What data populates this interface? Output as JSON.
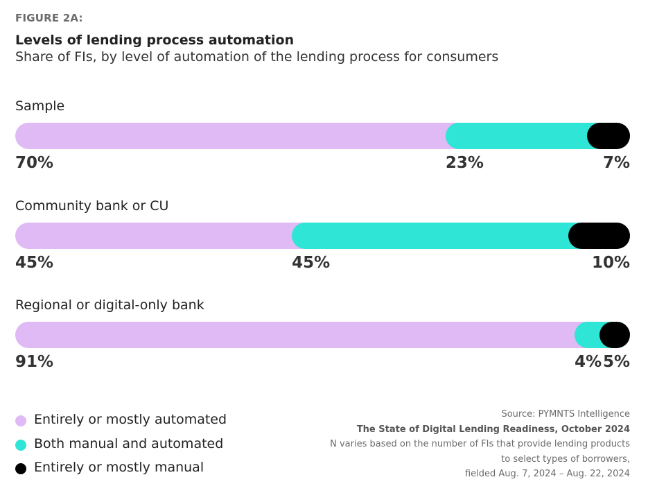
{
  "figure_label": "FIGURE 2A:",
  "title": "Levels of lending process automation",
  "subtitle": "Share of FIs, by level of automation of the lending process for consumers",
  "colors": {
    "automated": "#dfbaf5",
    "both": "#2ee5d6",
    "manual": "#000000"
  },
  "chart_data": {
    "type": "bar",
    "orientation": "horizontal",
    "stacked": true,
    "title": "Levels of lending process automation",
    "subtitle": "Share of FIs, by level of automation of the lending process for consumers",
    "categories": [
      "Sample",
      "Community bank or CU",
      "Regional or digital-only bank"
    ],
    "series": [
      {
        "name": "Entirely or mostly automated",
        "values": [
          70,
          45,
          91
        ]
      },
      {
        "name": "Both manual and automated",
        "values": [
          23,
          45,
          4
        ]
      },
      {
        "name": "Entirely or mostly manual",
        "values": [
          7,
          10,
          5
        ]
      }
    ],
    "value_labels": [
      [
        "70%",
        "23%",
        "7%"
      ],
      [
        "45%",
        "45%",
        "10%"
      ],
      [
        "91%",
        "4%",
        "5%"
      ]
    ],
    "xlim": [
      0,
      100
    ],
    "grid": false,
    "legend_position": "bottom-left"
  },
  "legend": [
    {
      "label": "Entirely or mostly automated"
    },
    {
      "label": "Both manual and automated"
    },
    {
      "label": "Entirely or mostly manual"
    }
  ],
  "source": {
    "line1": "Source: PYMNTS Intelligence",
    "line2": "The State of Digital Lending Readiness, October 2024",
    "line3": "N varies based on the number of FIs that provide lending products",
    "line4": "to select types of borrowers,",
    "line5": "fielded Aug. 7, 2024 – Aug. 22, 2024"
  }
}
